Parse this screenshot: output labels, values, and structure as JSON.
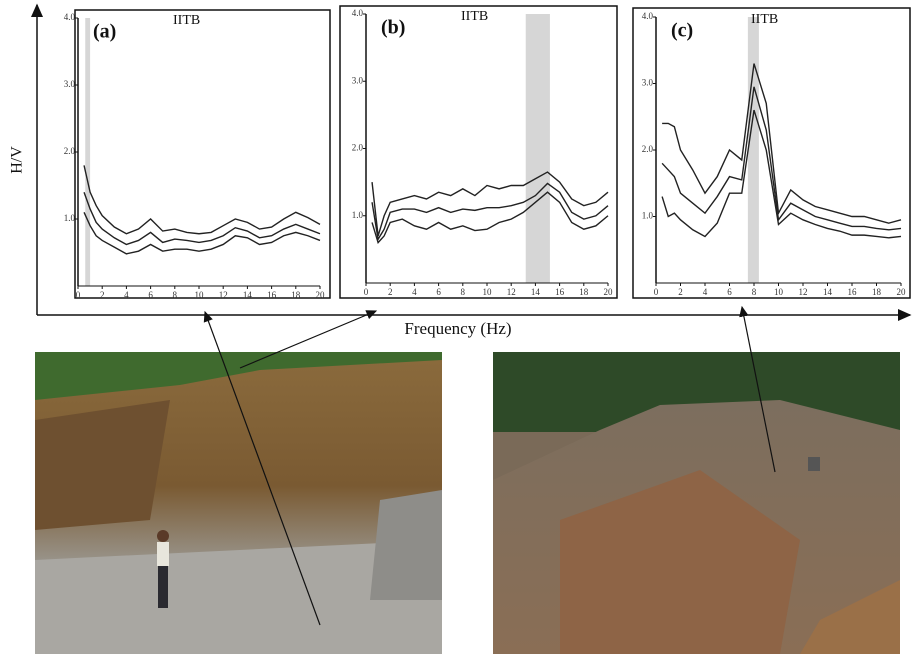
{
  "axis_labels": {
    "y": "H/V",
    "x": "Frequency (Hz)"
  },
  "chart_data": [
    {
      "type": "line",
      "panel_label": "(a)",
      "annotation": "IITB",
      "x": [
        0.5,
        1,
        1.5,
        2,
        3,
        4,
        5,
        6,
        7,
        8,
        9,
        10,
        11,
        12,
        13,
        14,
        15,
        16,
        17,
        18,
        19,
        20
      ],
      "series": [
        {
          "color": "#222222",
          "values": [
            1.8,
            1.4,
            1.2,
            1.05,
            0.88,
            0.78,
            0.85,
            1.0,
            0.82,
            0.85,
            0.8,
            0.78,
            0.8,
            0.9,
            1.0,
            0.95,
            0.85,
            0.88,
            1.0,
            1.1,
            1.02,
            0.92
          ]
        },
        {
          "color": "#222222",
          "values": [
            1.4,
            1.15,
            0.95,
            0.85,
            0.72,
            0.62,
            0.68,
            0.8,
            0.65,
            0.7,
            0.68,
            0.65,
            0.68,
            0.75,
            0.87,
            0.82,
            0.72,
            0.75,
            0.85,
            0.92,
            0.85,
            0.78
          ]
        },
        {
          "color": "#222222",
          "values": [
            1.1,
            0.9,
            0.75,
            0.68,
            0.58,
            0.48,
            0.52,
            0.62,
            0.52,
            0.55,
            0.55,
            0.52,
            0.55,
            0.62,
            0.75,
            0.72,
            0.62,
            0.65,
            0.75,
            0.8,
            0.75,
            0.68
          ]
        }
      ],
      "shaded_band": [
        0.6,
        1.0
      ],
      "xlim": [
        0,
        20
      ],
      "xticks": [
        0,
        2,
        4,
        6,
        8,
        10,
        12,
        14,
        16,
        18,
        20
      ],
      "ylim": [
        0,
        4
      ],
      "yticks": [
        {
          "value": 1,
          "label": "1.0"
        },
        {
          "value": 2,
          "label": "2.0"
        },
        {
          "value": 3,
          "label": "3.0"
        },
        {
          "value": 4,
          "label": "4.0"
        }
      ]
    },
    {
      "type": "line",
      "panel_label": "(b)",
      "annotation": "IITB",
      "x": [
        0.5,
        1,
        1.5,
        2,
        3,
        4,
        5,
        6,
        7,
        8,
        9,
        10,
        11,
        12,
        13,
        14,
        15,
        16,
        17,
        18,
        19,
        20
      ],
      "series": [
        {
          "color": "#222222",
          "values": [
            1.5,
            0.7,
            1.0,
            1.2,
            1.25,
            1.3,
            1.25,
            1.35,
            1.3,
            1.4,
            1.3,
            1.45,
            1.4,
            1.45,
            1.45,
            1.55,
            1.65,
            1.5,
            1.25,
            1.15,
            1.2,
            1.35
          ]
        },
        {
          "color": "#222222",
          "values": [
            1.2,
            0.65,
            0.8,
            1.05,
            1.1,
            1.1,
            1.05,
            1.12,
            1.05,
            1.1,
            1.08,
            1.12,
            1.12,
            1.15,
            1.2,
            1.3,
            1.48,
            1.35,
            1.05,
            0.95,
            1.0,
            1.15
          ]
        },
        {
          "color": "#222222",
          "values": [
            0.9,
            0.6,
            0.7,
            0.9,
            0.95,
            0.85,
            0.8,
            0.9,
            0.8,
            0.85,
            0.78,
            0.8,
            0.9,
            0.95,
            1.05,
            1.2,
            1.35,
            1.2,
            0.9,
            0.8,
            0.85,
            1.0
          ]
        }
      ],
      "shaded_band": [
        13.2,
        15.2
      ],
      "xlim": [
        0,
        20
      ],
      "xticks": [
        0,
        2,
        4,
        6,
        8,
        10,
        12,
        14,
        16,
        18,
        20
      ],
      "ylim": [
        0,
        4
      ],
      "yticks": [
        {
          "value": 1,
          "label": "1.0"
        },
        {
          "value": 2,
          "label": "2.0"
        },
        {
          "value": 3,
          "label": "3.0"
        },
        {
          "value": 4,
          "label": "4.0"
        }
      ]
    },
    {
      "type": "line",
      "panel_label": "(c)",
      "annotation": "IITB",
      "x": [
        0.5,
        1,
        1.5,
        2,
        3,
        4,
        5,
        6,
        7,
        8,
        9,
        10,
        11,
        12,
        13,
        14,
        15,
        16,
        17,
        18,
        19,
        20
      ],
      "series": [
        {
          "color": "#222222",
          "values": [
            2.4,
            2.4,
            2.35,
            2.0,
            1.7,
            1.35,
            1.6,
            2.0,
            1.85,
            3.3,
            2.7,
            1.05,
            1.4,
            1.25,
            1.15,
            1.1,
            1.05,
            1.0,
            1.0,
            0.95,
            0.9,
            0.95
          ]
        },
        {
          "color": "#222222",
          "values": [
            1.8,
            1.7,
            1.6,
            1.35,
            1.2,
            1.05,
            1.3,
            1.6,
            1.55,
            2.95,
            2.3,
            0.95,
            1.2,
            1.1,
            1.0,
            0.95,
            0.9,
            0.85,
            0.85,
            0.82,
            0.8,
            0.82
          ]
        },
        {
          "color": "#222222",
          "values": [
            1.3,
            1.0,
            1.05,
            0.95,
            0.8,
            0.7,
            0.9,
            1.35,
            1.35,
            2.6,
            2.0,
            0.88,
            1.05,
            0.95,
            0.88,
            0.82,
            0.78,
            0.72,
            0.72,
            0.7,
            0.68,
            0.7
          ]
        }
      ],
      "shaded_band": [
        7.5,
        8.4
      ],
      "xlim": [
        0,
        20
      ],
      "xticks": [
        0,
        2,
        4,
        6,
        8,
        10,
        12,
        14,
        16,
        18,
        20
      ],
      "ylim": [
        0,
        4
      ],
      "yticks": [
        {
          "value": 1,
          "label": "1.0"
        },
        {
          "value": 2,
          "label": "2.0"
        },
        {
          "value": 3,
          "label": "3.0"
        },
        {
          "value": 4,
          "label": "4.0"
        }
      ]
    }
  ]
}
